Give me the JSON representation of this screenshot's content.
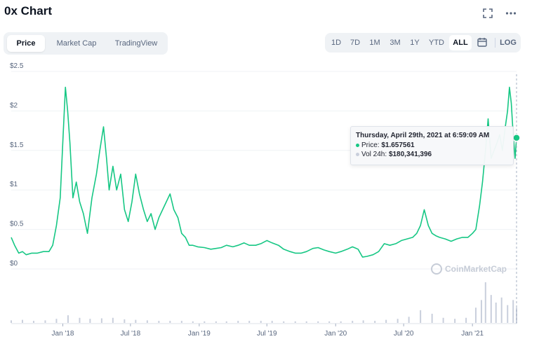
{
  "header": {
    "title": "0x Chart",
    "expand_icon": "expand-icon",
    "more_icon": "more-icon"
  },
  "view_tabs": [
    {
      "label": "Price",
      "active": true
    },
    {
      "label": "Market Cap",
      "active": false
    },
    {
      "label": "TradingView",
      "active": false
    }
  ],
  "range_buttons": [
    {
      "label": "1D",
      "active": false
    },
    {
      "label": "7D",
      "active": false
    },
    {
      "label": "1M",
      "active": false
    },
    {
      "label": "3M",
      "active": false
    },
    {
      "label": "1Y",
      "active": false
    },
    {
      "label": "YTD",
      "active": false
    },
    {
      "label": "ALL",
      "active": true
    }
  ],
  "calendar_icon": "calendar-icon",
  "log_label": "LOG",
  "tooltip": {
    "title": "Thursday, April 29th, 2021 at 6:59:09 AM",
    "price_label": "Price:",
    "price_value": "$1.657561",
    "vol_label": "Vol 24h:",
    "vol_value": "$180,341,396"
  },
  "watermark": "CoinMarketCap",
  "colors": {
    "line": "#16c784",
    "volume": "#c9cfdc",
    "grid": "#eff2f5",
    "text": "#58667e"
  },
  "chart_data": {
    "type": "line",
    "title": "0x Chart",
    "ylim": [
      0,
      2.5
    ],
    "y_ticks": [
      0,
      0.5,
      1,
      1.5,
      2,
      2.5
    ],
    "y_tick_labels": [
      "$0",
      "$0.5",
      "$1",
      "$1.5",
      "$2",
      "$2.5"
    ],
    "x_tick_labels": [
      "Jan '18",
      "Jul '18",
      "Jan '19",
      "Jul '19",
      "Jan '20",
      "Jul '20",
      "Jan '21"
    ],
    "x_tick_dates": [
      "2018-01-01",
      "2018-07-01",
      "2019-01-01",
      "2019-07-01",
      "2020-01-01",
      "2020-07-01",
      "2021-01-01"
    ],
    "x_range": [
      "2017-08-16",
      "2021-04-29"
    ],
    "grid": true,
    "series": [
      {
        "type": "line",
        "x": [
          "2017-08-16",
          "2017-08-25",
          "2017-09-05",
          "2017-09-15",
          "2017-09-25",
          "2017-10-10",
          "2017-10-25",
          "2017-11-10",
          "2017-11-25",
          "2017-12-05",
          "2017-12-15",
          "2017-12-25",
          "2018-01-02",
          "2018-01-08",
          "2018-01-14",
          "2018-01-20",
          "2018-01-28",
          "2018-02-06",
          "2018-02-15",
          "2018-02-25",
          "2018-03-08",
          "2018-03-20",
          "2018-04-01",
          "2018-04-10",
          "2018-04-20",
          "2018-04-28",
          "2018-05-05",
          "2018-05-15",
          "2018-05-25",
          "2018-06-05",
          "2018-06-15",
          "2018-06-25",
          "2018-07-05",
          "2018-07-15",
          "2018-07-25",
          "2018-08-05",
          "2018-08-15",
          "2018-08-25",
          "2018-09-05",
          "2018-09-15",
          "2018-09-25",
          "2018-10-05",
          "2018-10-15",
          "2018-10-25",
          "2018-11-05",
          "2018-11-15",
          "2018-11-25",
          "2018-12-05",
          "2018-12-15",
          "2018-12-28",
          "2019-01-15",
          "2019-02-01",
          "2019-02-15",
          "2019-03-01",
          "2019-03-15",
          "2019-04-01",
          "2019-04-15",
          "2019-05-01",
          "2019-05-15",
          "2019-06-01",
          "2019-06-15",
          "2019-07-01",
          "2019-07-15",
          "2019-08-01",
          "2019-08-15",
          "2019-09-01",
          "2019-09-15",
          "2019-10-01",
          "2019-10-15",
          "2019-11-01",
          "2019-11-15",
          "2019-12-01",
          "2019-12-15",
          "2020-01-01",
          "2020-01-15",
          "2020-02-01",
          "2020-02-15",
          "2020-03-01",
          "2020-03-13",
          "2020-03-25",
          "2020-04-10",
          "2020-04-25",
          "2020-05-10",
          "2020-05-25",
          "2020-06-10",
          "2020-06-25",
          "2020-07-10",
          "2020-07-25",
          "2020-08-05",
          "2020-08-15",
          "2020-08-25",
          "2020-09-05",
          "2020-09-15",
          "2020-09-25",
          "2020-10-05",
          "2020-10-20",
          "2020-11-05",
          "2020-11-20",
          "2020-12-05",
          "2020-12-20",
          "2021-01-01",
          "2021-01-10",
          "2021-01-20",
          "2021-01-28",
          "2021-02-05",
          "2021-02-12",
          "2021-02-20",
          "2021-02-28",
          "2021-03-08",
          "2021-03-15",
          "2021-03-22",
          "2021-03-30",
          "2021-04-05",
          "2021-04-10",
          "2021-04-15",
          "2021-04-20",
          "2021-04-25",
          "2021-04-29"
        ],
        "y": [
          0.4,
          0.3,
          0.2,
          0.22,
          0.18,
          0.2,
          0.2,
          0.22,
          0.22,
          0.3,
          0.55,
          0.9,
          1.7,
          2.3,
          2.0,
          1.6,
          0.9,
          1.1,
          0.85,
          0.7,
          0.45,
          0.9,
          1.2,
          1.5,
          1.8,
          1.4,
          1.0,
          1.3,
          1.0,
          1.2,
          0.75,
          0.6,
          0.85,
          1.2,
          0.95,
          0.75,
          0.6,
          0.7,
          0.5,
          0.65,
          0.75,
          0.85,
          0.95,
          0.75,
          0.65,
          0.45,
          0.4,
          0.3,
          0.3,
          0.28,
          0.27,
          0.25,
          0.26,
          0.27,
          0.3,
          0.28,
          0.3,
          0.33,
          0.3,
          0.3,
          0.32,
          0.36,
          0.33,
          0.3,
          0.25,
          0.22,
          0.2,
          0.2,
          0.22,
          0.26,
          0.27,
          0.24,
          0.22,
          0.2,
          0.22,
          0.25,
          0.28,
          0.25,
          0.15,
          0.16,
          0.18,
          0.22,
          0.32,
          0.3,
          0.32,
          0.36,
          0.38,
          0.4,
          0.45,
          0.55,
          0.75,
          0.55,
          0.45,
          0.42,
          0.4,
          0.38,
          0.35,
          0.38,
          0.4,
          0.4,
          0.45,
          0.5,
          0.8,
          1.1,
          1.5,
          1.9,
          1.4,
          1.5,
          1.6,
          1.7,
          1.5,
          1.8,
          2.0,
          2.3,
          2.1,
          1.7,
          1.4,
          1.66
        ]
      },
      {
        "type": "volume",
        "x": [
          "2017-08-16",
          "2017-09-15",
          "2017-10-15",
          "2017-11-15",
          "2017-12-15",
          "2018-01-15",
          "2018-02-15",
          "2018-03-15",
          "2018-04-15",
          "2018-05-15",
          "2018-06-15",
          "2018-07-15",
          "2018-08-15",
          "2018-09-15",
          "2018-10-15",
          "2018-11-15",
          "2018-12-15",
          "2019-01-15",
          "2019-02-15",
          "2019-03-15",
          "2019-04-15",
          "2019-05-15",
          "2019-06-15",
          "2019-07-15",
          "2019-08-15",
          "2019-09-15",
          "2019-10-15",
          "2019-11-15",
          "2019-12-15",
          "2020-01-15",
          "2020-02-15",
          "2020-03-15",
          "2020-04-15",
          "2020-05-15",
          "2020-06-15",
          "2020-07-15",
          "2020-08-15",
          "2020-09-15",
          "2020-10-15",
          "2020-11-15",
          "2020-12-15",
          "2021-01-10",
          "2021-01-25",
          "2021-02-05",
          "2021-02-20",
          "2021-03-05",
          "2021-03-20",
          "2021-04-05",
          "2021-04-20",
          "2021-04-29"
        ],
        "y": [
          5,
          6,
          4,
          5,
          8,
          15,
          10,
          8,
          9,
          10,
          7,
          6,
          5,
          4,
          4,
          4,
          3,
          3,
          3,
          3,
          4,
          4,
          4,
          4,
          3,
          3,
          3,
          3,
          3,
          3,
          4,
          5,
          4,
          6,
          8,
          12,
          25,
          18,
          10,
          8,
          10,
          30,
          45,
          80,
          55,
          40,
          50,
          35,
          45,
          30
        ]
      }
    ]
  }
}
